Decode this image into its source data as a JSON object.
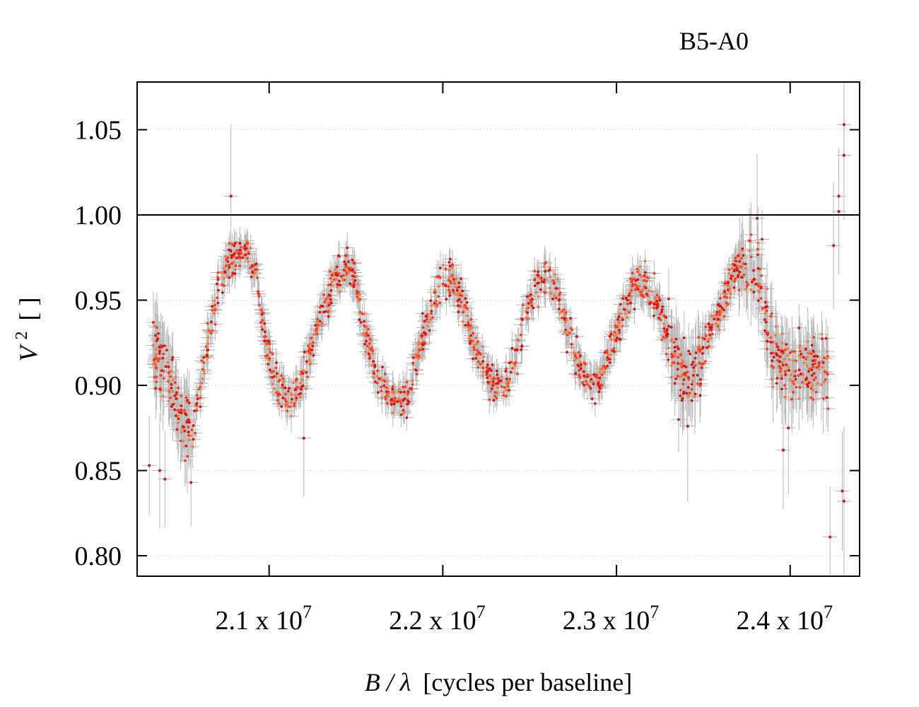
{
  "chart_data": {
    "type": "scatter",
    "title": "B5-A0",
    "xlabel": {
      "symbol": "B / λ",
      "text": "[cycles per baseline]"
    },
    "ylabel": {
      "symbol": "V",
      "superscript": "2",
      "text": "[ ]"
    },
    "xlim": [
      20240000,
      24400000
    ],
    "ylim": [
      0.788,
      1.078
    ],
    "x_ticks": [
      {
        "value": 21000000,
        "label": "2.1 x 10",
        "exp": "7"
      },
      {
        "value": 22000000,
        "label": "2.2 x 10",
        "exp": "7"
      },
      {
        "value": 23000000,
        "label": "2.3 x 10",
        "exp": "7"
      },
      {
        "value": 24000000,
        "label": "2.4 x 10",
        "exp": "7"
      }
    ],
    "y_ticks": [
      {
        "value": 0.8,
        "label": "0.80"
      },
      {
        "value": 0.85,
        "label": "0.85"
      },
      {
        "value": 0.9,
        "label": "0.90"
      },
      {
        "value": 0.95,
        "label": "0.95"
      },
      {
        "value": 1.0,
        "label": "1.00"
      },
      {
        "value": 1.05,
        "label": "1.05"
      }
    ],
    "reference_line": 1.0,
    "grid": "horizontal-dotted",
    "point_colors": [
      "#e01010",
      "#ff3b1f",
      "#f07a40"
    ],
    "errorbar_color": "#b8b8b8",
    "series": [
      {
        "points": [
          [
            20330000,
            0.925
          ],
          [
            20450000,
            0.893
          ],
          [
            20520000,
            0.876
          ],
          [
            20560000,
            0.872
          ],
          [
            20630000,
            0.915
          ],
          [
            20700000,
            0.953
          ],
          [
            20760000,
            0.972
          ],
          [
            20820000,
            0.978
          ],
          [
            20860000,
            0.982
          ],
          [
            20920000,
            0.965
          ],
          [
            20990000,
            0.92
          ],
          [
            21060000,
            0.896
          ],
          [
            21120000,
            0.889
          ],
          [
            21180000,
            0.9
          ],
          [
            21250000,
            0.925
          ],
          [
            21330000,
            0.95
          ],
          [
            21390000,
            0.965
          ],
          [
            21450000,
            0.972
          ],
          [
            21500000,
            0.96
          ],
          [
            21560000,
            0.927
          ],
          [
            21620000,
            0.905
          ],
          [
            21680000,
            0.895
          ],
          [
            21740000,
            0.89
          ],
          [
            21800000,
            0.893
          ],
          [
            21860000,
            0.92
          ],
          [
            21930000,
            0.945
          ],
          [
            21990000,
            0.961
          ],
          [
            22060000,
            0.962
          ],
          [
            22120000,
            0.948
          ],
          [
            22180000,
            0.923
          ],
          [
            22240000,
            0.907
          ],
          [
            22300000,
            0.9
          ],
          [
            22360000,
            0.902
          ],
          [
            22420000,
            0.918
          ],
          [
            22480000,
            0.942
          ],
          [
            22540000,
            0.958
          ],
          [
            22600000,
            0.962
          ],
          [
            22660000,
            0.955
          ],
          [
            22710000,
            0.937
          ],
          [
            22770000,
            0.915
          ],
          [
            22830000,
            0.902
          ],
          [
            22880000,
            0.9
          ],
          [
            22940000,
            0.912
          ],
          [
            23000000,
            0.93
          ],
          [
            23060000,
            0.948
          ],
          [
            23120000,
            0.96
          ],
          [
            23180000,
            0.958
          ],
          [
            23240000,
            0.945
          ],
          [
            23300000,
            0.927
          ],
          [
            23350000,
            0.911
          ],
          [
            23420000,
            0.903
          ],
          [
            23470000,
            0.91
          ],
          [
            23520000,
            0.927
          ],
          [
            23600000,
            0.945
          ],
          [
            23690000,
            0.968
          ],
          [
            23760000,
            0.975
          ],
          [
            23830000,
            0.96
          ],
          [
            23880000,
            0.928
          ],
          [
            23940000,
            0.912
          ],
          [
            24010000,
            0.91
          ],
          [
            24080000,
            0.911
          ],
          [
            24150000,
            0.91
          ],
          [
            24220000,
            0.912
          ]
        ],
        "outliers": [
          [
            20780000,
            1.011
          ],
          [
            24310000,
            1.053
          ],
          [
            24310000,
            1.035
          ],
          [
            24280000,
            1.011
          ],
          [
            24280000,
            1.002
          ],
          [
            24250000,
            0.982
          ],
          [
            24300000,
            0.838
          ],
          [
            24310000,
            0.832
          ],
          [
            24230000,
            0.811
          ],
          [
            20310000,
            0.853
          ],
          [
            20370000,
            0.85
          ],
          [
            20400000,
            0.845
          ],
          [
            20550000,
            0.843
          ],
          [
            21200000,
            0.869
          ],
          [
            23410000,
            0.876
          ],
          [
            23960000,
            0.862
          ],
          [
            23990000,
            0.875
          ],
          [
            23810000,
            0.998
          ]
        ]
      }
    ]
  }
}
